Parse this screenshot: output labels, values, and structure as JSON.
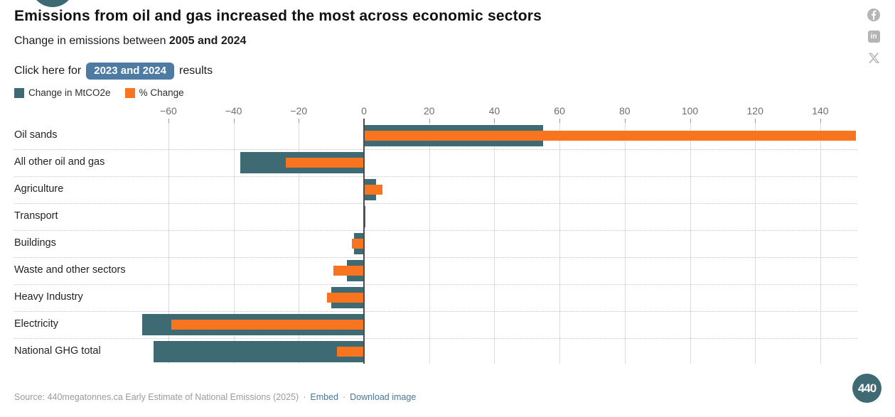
{
  "header": {
    "title": "Emissions from oil and gas increased the most across economic sectors",
    "subtitle_prefix": "Change in emissions between ",
    "subtitle_bold": "2005 and 2024",
    "cta_prefix": "Click here for",
    "cta_button_label": "2023 and 2024",
    "cta_suffix": "results"
  },
  "legend": {
    "items": [
      {
        "label": "Change in MtCO2e",
        "color": "#3e6b73"
      },
      {
        "label": "% Change",
        "color": "#f8741f"
      }
    ]
  },
  "social": {
    "facebook": "facebook-icon",
    "linkedin": "linkedin-icon",
    "x": "x-icon",
    "icon_color": "#b5b5b5"
  },
  "chart_data": {
    "type": "bar",
    "orientation": "horizontal",
    "title": "Emissions from oil and gas increased the most across economic sectors",
    "subtitle": "Change in emissions between 2005 and 2024",
    "categories": [
      "Oil sands",
      "All other oil and gas",
      "Agriculture",
      "Transport",
      "Buildings",
      "Waste and other sectors",
      "Heavy Industry",
      "Electricity",
      "National GHG total"
    ],
    "series": [
      {
        "name": "Change in MtCO2e",
        "color": "#3e6b73",
        "values": [
          55,
          -38,
          3.7,
          0.4,
          -3.1,
          -5.2,
          -10.1,
          -68,
          -64.5
        ]
      },
      {
        "name": "% Change",
        "color": "#f8741f",
        "values": [
          151,
          -24,
          5.7,
          0.3,
          -3.6,
          -9.4,
          -11.4,
          -59,
          -8.3
        ]
      }
    ],
    "x_ticks": [
      -60,
      -40,
      -20,
      0,
      20,
      40,
      60,
      80,
      100,
      120,
      140
    ],
    "xlim": [
      -66,
      152
    ],
    "grid": true,
    "legend_position": "top-left",
    "zero_line": true
  },
  "footer": {
    "source_text": "Source: 440megatonnes.ca Early Estimate of National Emissions (2025)",
    "separator1": "·",
    "embed_label": "Embed",
    "separator2": "·",
    "download_label": "Download image",
    "logo_text": "440",
    "logo_arrow": "↓"
  },
  "colors": {
    "bar_teal": "#3e6b73",
    "bar_orange": "#f8741f",
    "button_blue": "#4d7ba4",
    "link_blue": "#45789c",
    "grid": "#dcdcdc",
    "zero_line": "#4c4c4c",
    "social_gray": "#b5b5b5",
    "logo_arrow_red": "#e23b2e"
  }
}
